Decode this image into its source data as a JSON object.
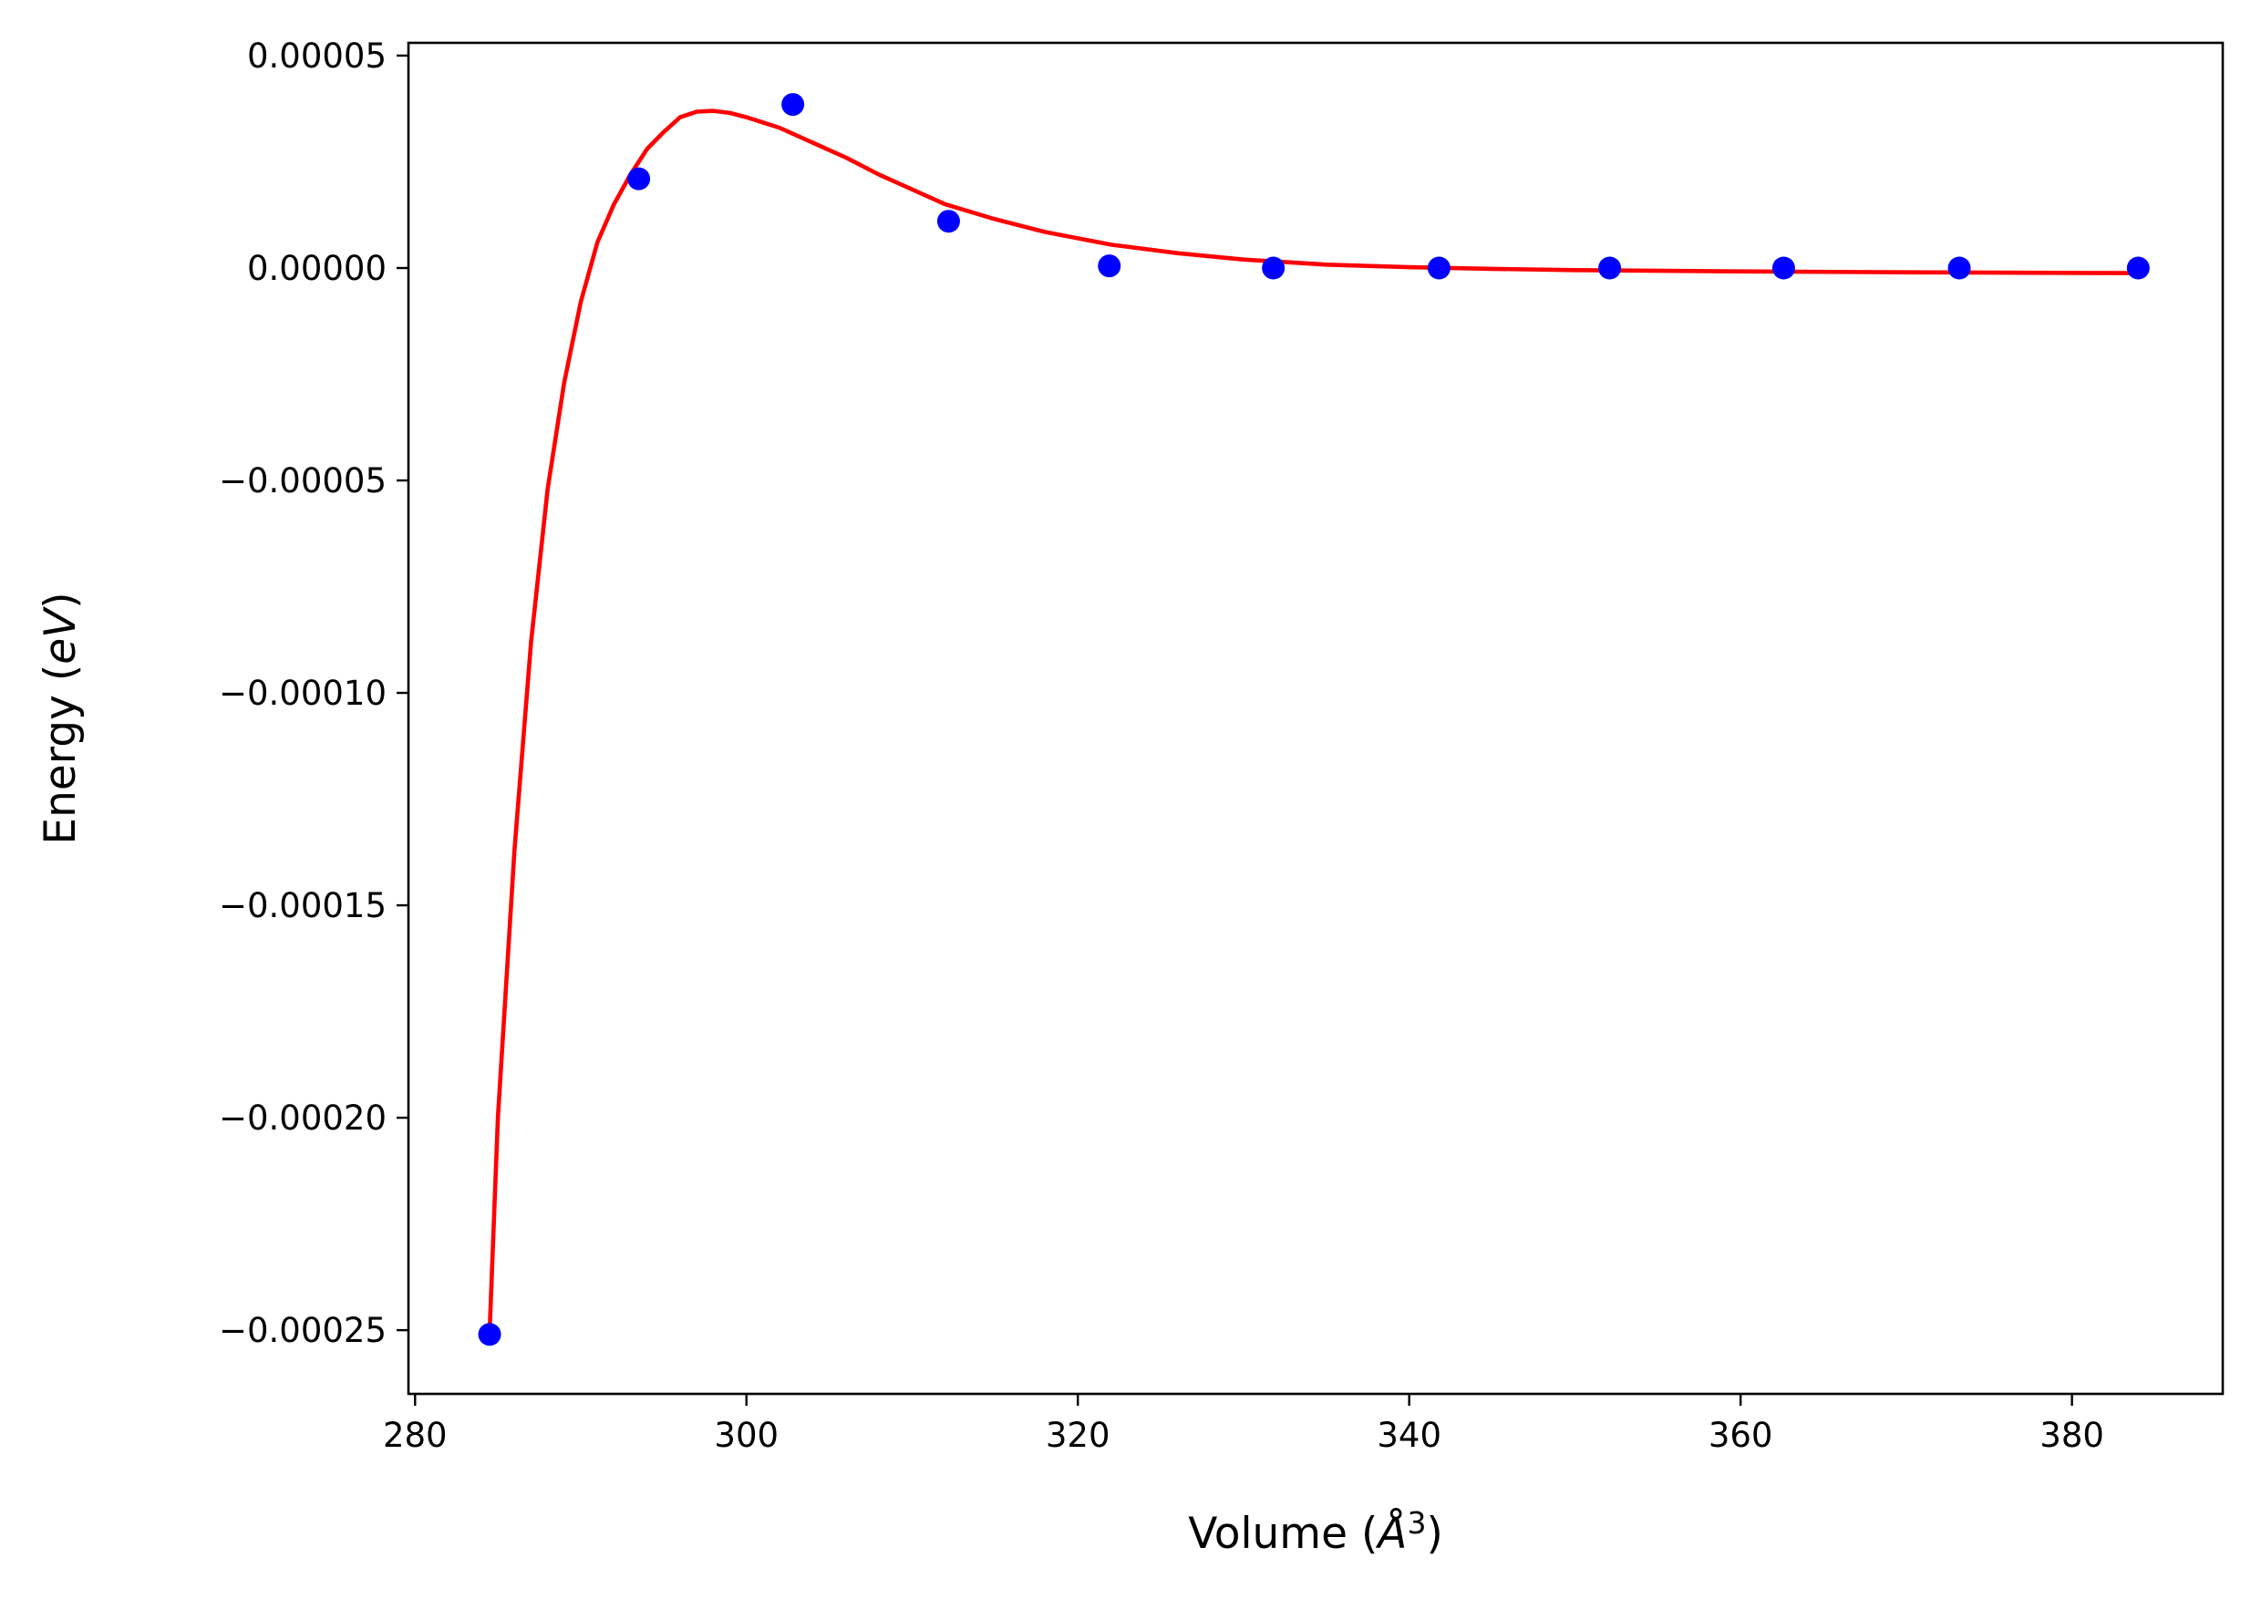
{
  "chart_data": {
    "type": "scatter",
    "title": "",
    "xlabel": "Volume",
    "xlabel_unit_pre": " (",
    "xlabel_unit_symbol": "Å",
    "xlabel_unit_exp": "3",
    "xlabel_unit_post": ")",
    "ylabel": "Energy",
    "ylabel_unit_pre": " (",
    "ylabel_unit_var": "eV",
    "ylabel_unit_post": ")",
    "xlim": [
      279.6,
      389.1
    ],
    "ylim": [
      -0.000265,
      5.3e-05
    ],
    "xticks": [
      280,
      300,
      320,
      340,
      360,
      380
    ],
    "xtick_labels": [
      "280",
      "300",
      "320",
      "340",
      "360",
      "380"
    ],
    "yticks": [
      5e-05,
      0.0,
      -5e-05,
      -0.0001,
      -0.00015,
      -0.0002,
      -0.00025
    ],
    "ytick_labels": [
      "0.00005",
      "0.00000",
      "−0.00005",
      "−0.00010",
      "−0.00015",
      "−0.00020",
      "−0.00025"
    ],
    "grid": false,
    "legend": "none",
    "series": [
      {
        "kind": "points",
        "color": "#0000ff",
        "x": [
          284.5,
          293.5,
          302.8,
          312.2,
          321.9,
          331.8,
          341.8,
          352.1,
          362.6,
          373.2,
          384.0
        ],
        "y": [
          -0.000251,
          2.1e-05,
          3.85e-05,
          1.1e-05,
          5e-07,
          0.0,
          0.0,
          0.0,
          0.0,
          0.0,
          0.0
        ]
      },
      {
        "kind": "fit-curve",
        "color": "#ff0000",
        "x": [
          284.5,
          285.0,
          286.0,
          287.0,
          288.0,
          289.0,
          290.0,
          291.0,
          292.0,
          293.0,
          294.0,
          295.0,
          296.0,
          297.0,
          298.0,
          299.0,
          300.0,
          302.0,
          304.0,
          306.0,
          308.0,
          310.0,
          312.0,
          315.0,
          318.0,
          322.0,
          326.0,
          330.0,
          335.0,
          340.0,
          345.0,
          350.0,
          360.0,
          370.0,
          384.0
        ],
        "y": [
          -0.00025,
          -0.0002,
          -0.000137,
          -8.8e-05,
          -5.2e-05,
          -2.7e-05,
          -8e-06,
          6e-06,
          1.5e-05,
          2.2e-05,
          2.8e-05,
          3.2e-05,
          3.55e-05,
          3.68e-05,
          3.7e-05,
          3.65e-05,
          3.55e-05,
          3.3e-05,
          2.95e-05,
          2.6e-05,
          2.2e-05,
          1.85e-05,
          1.5e-05,
          1.15e-05,
          8.5e-06,
          5.5e-06,
          3.5e-06,
          2e-06,
          8e-07,
          2e-07,
          -2e-07,
          -5e-07,
          -8e-07,
          -1e-06,
          -1.2e-06
        ]
      }
    ]
  }
}
